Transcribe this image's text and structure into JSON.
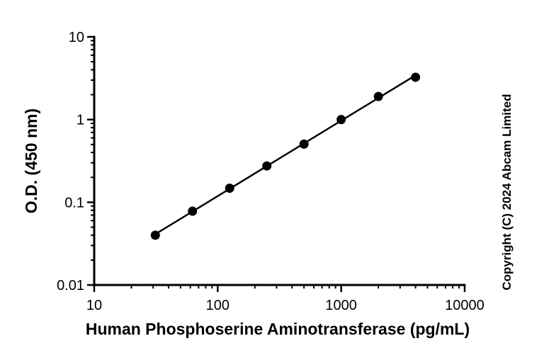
{
  "chart_data": {
    "type": "scatter",
    "xlabel": "Human Phosphoserine Aminotransferase (pg/mL)",
    "ylabel": "O.D. (450 nm)",
    "x_scale": "log",
    "y_scale": "log",
    "xlim": [
      10,
      10000
    ],
    "ylim": [
      0.01,
      10
    ],
    "x_ticks": [
      "10",
      "100",
      "1000",
      "10000"
    ],
    "y_ticks": [
      "0.01",
      "0.1",
      "1",
      "10"
    ],
    "grid": false,
    "fit_line": true,
    "series": [
      {
        "x": [
          31.25,
          62.5,
          125,
          250,
          500,
          1000,
          2000,
          4000
        ],
        "y": [
          0.04,
          0.078,
          0.148,
          0.275,
          0.505,
          1.0,
          1.9,
          3.25
        ]
      }
    ],
    "colors": {
      "marker": "#000000",
      "line": "#000000"
    },
    "annotation": "Copyright (C) 2024 Abcam Limited"
  }
}
